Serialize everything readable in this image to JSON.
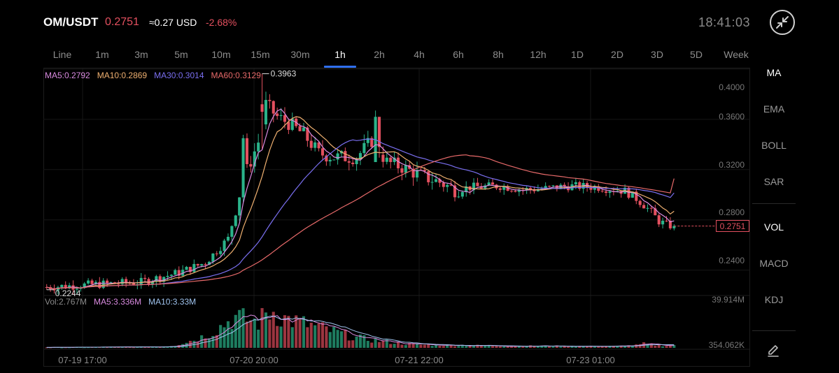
{
  "header": {
    "pair": "OM/USDT",
    "price": "0.2751",
    "usd_equiv": "≈0.27 USD",
    "change": "-2.68%",
    "clock": "18:41:03"
  },
  "colors": {
    "up": "#2ab38a",
    "down": "#e3505f",
    "ma5": "#d98be0",
    "ma10": "#efb070",
    "ma30": "#7a6ff0",
    "ma60": "#e86a6a",
    "accent": "#2f6ff0"
  },
  "tabs": [
    "Line",
    "1m",
    "3m",
    "5m",
    "10m",
    "15m",
    "30m",
    "1h",
    "2h",
    "4h",
    "6h",
    "8h",
    "12h",
    "1D",
    "2D",
    "3D",
    "5D",
    "Week"
  ],
  "active_tab": "1h",
  "indicators": {
    "main": [
      "MA",
      "EMA",
      "BOLL",
      "SAR"
    ],
    "sub": [
      "VOL",
      "MACD",
      "KDJ"
    ],
    "active": [
      "MA",
      "VOL"
    ]
  },
  "icons": {
    "collapse": "collapse-arrows-icon",
    "draw": "pencil-icon"
  },
  "ma_legend": {
    "ma5": "MA5:0.2792",
    "ma10": "MA10:0.2869",
    "ma30": "MA30:0.3014",
    "ma60": "MA60:0.3129"
  },
  "vol_legend": {
    "vol": "Vol:2.767M",
    "ma5": "MA5:3.336M",
    "ma10": "MA10:3.33M"
  },
  "chart_data": {
    "type": "candlestick",
    "price_axis": [
      "0.4000",
      "0.3600",
      "0.3200",
      "0.2800",
      "0.2400"
    ],
    "price_ticks": [
      0.4,
      0.36,
      0.32,
      0.28,
      0.24
    ],
    "ylim": [
      0.2215,
      0.4005
    ],
    "time_axis": [
      "07-19 17:00",
      "07-20 20:00",
      "07-21 22:00",
      "07-23 01:00"
    ],
    "high_label": "0.3963",
    "low_label": "0.2244",
    "last_price": "0.2751",
    "volume_axis": [
      "39.914M",
      "354.062K"
    ],
    "volume_max": 39.914,
    "anchors": [
      [
        0,
        0.2265
      ],
      [
        12,
        0.2285
      ],
      [
        25,
        0.2305
      ],
      [
        35,
        0.238
      ],
      [
        42,
        0.246
      ],
      [
        48,
        0.265
      ],
      [
        52,
        0.312
      ],
      [
        56,
        0.342
      ],
      [
        58,
        0.372
      ],
      [
        61,
        0.362
      ],
      [
        64,
        0.357
      ],
      [
        68,
        0.348
      ],
      [
        72,
        0.333
      ],
      [
        76,
        0.33
      ],
      [
        82,
        0.33
      ],
      [
        86,
        0.343
      ],
      [
        90,
        0.326
      ],
      [
        94,
        0.322
      ],
      [
        100,
        0.314
      ],
      [
        104,
        0.31
      ],
      [
        108,
        0.304
      ],
      [
        112,
        0.306
      ],
      [
        120,
        0.307
      ],
      [
        126,
        0.304
      ],
      [
        132,
        0.305
      ],
      [
        138,
        0.307
      ],
      [
        146,
        0.306
      ],
      [
        150,
        0.304
      ],
      [
        153,
        0.303
      ],
      [
        156,
        0.297
      ],
      [
        158,
        0.292
      ],
      [
        160,
        0.286
      ],
      [
        162,
        0.279
      ],
      [
        164,
        0.276
      ],
      [
        166,
        0.2751
      ]
    ],
    "volume_anchors": [
      [
        0,
        0.5
      ],
      [
        30,
        1
      ],
      [
        34,
        2.5
      ],
      [
        36,
        5
      ],
      [
        40,
        9
      ],
      [
        44,
        16
      ],
      [
        48,
        26
      ],
      [
        50,
        30
      ],
      [
        53,
        28
      ],
      [
        56,
        25
      ],
      [
        58,
        34
      ],
      [
        60,
        36
      ],
      [
        62,
        30
      ],
      [
        64,
        28
      ],
      [
        66,
        26
      ],
      [
        70,
        22
      ],
      [
        74,
        18
      ],
      [
        78,
        14
      ],
      [
        82,
        10
      ],
      [
        86,
        8
      ],
      [
        90,
        6
      ],
      [
        95,
        4
      ],
      [
        100,
        3
      ],
      [
        110,
        2.5
      ],
      [
        120,
        2
      ],
      [
        130,
        1.8
      ],
      [
        140,
        1.6
      ],
      [
        150,
        1.5
      ],
      [
        156,
        2.5
      ],
      [
        158,
        4
      ],
      [
        160,
        3
      ],
      [
        162,
        2.5
      ],
      [
        164,
        2.2
      ],
      [
        166,
        2.767
      ]
    ],
    "ma_endpoints": {
      "MA5": 0.2792,
      "MA10": 0.2869,
      "MA30": 0.3014,
      "MA60": 0.3129
    },
    "candle_count": 167,
    "series": [
      "MA5",
      "MA10",
      "MA30",
      "MA60"
    ],
    "ma_periods": [
      5,
      10,
      30,
      60
    ]
  }
}
